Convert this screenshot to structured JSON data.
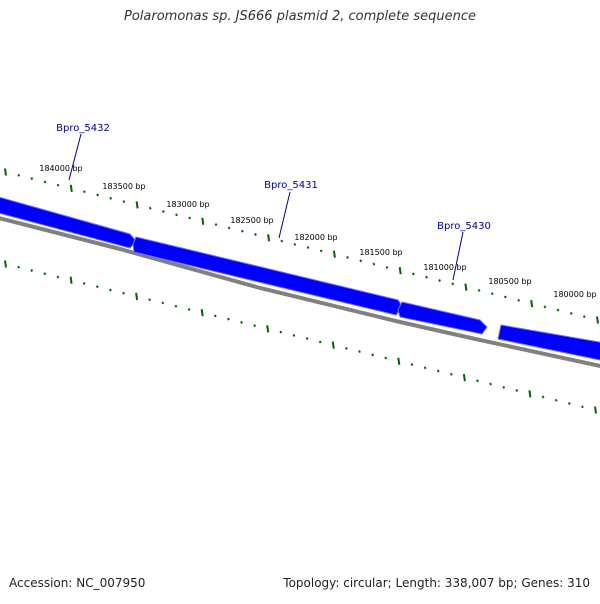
{
  "title": "Polaromonas sp. JS666 plasmid 2, complete sequence",
  "footer": {
    "accession": "Accession: NC_007950",
    "summary": "Topology: circular; Length: 338,007 bp; Genes: 310"
  },
  "colors": {
    "gene": "#0000ff",
    "gene_highlight": "#6f6fff",
    "backbone": "#808080",
    "ticks": "#006400",
    "gene_label": "#00008b",
    "tick_label": "#000000"
  },
  "scale": {
    "tick_labels": [
      "184000 bp",
      "183500 bp",
      "183000 bp",
      "182500 bp",
      "182000 bp",
      "181500 bp",
      "181000 bp",
      "180500 bp",
      "180000 bp"
    ]
  },
  "genes": [
    {
      "name": "Bpro_5432"
    },
    {
      "name": "Bpro_5431"
    },
    {
      "name": "Bpro_5430"
    }
  ]
}
